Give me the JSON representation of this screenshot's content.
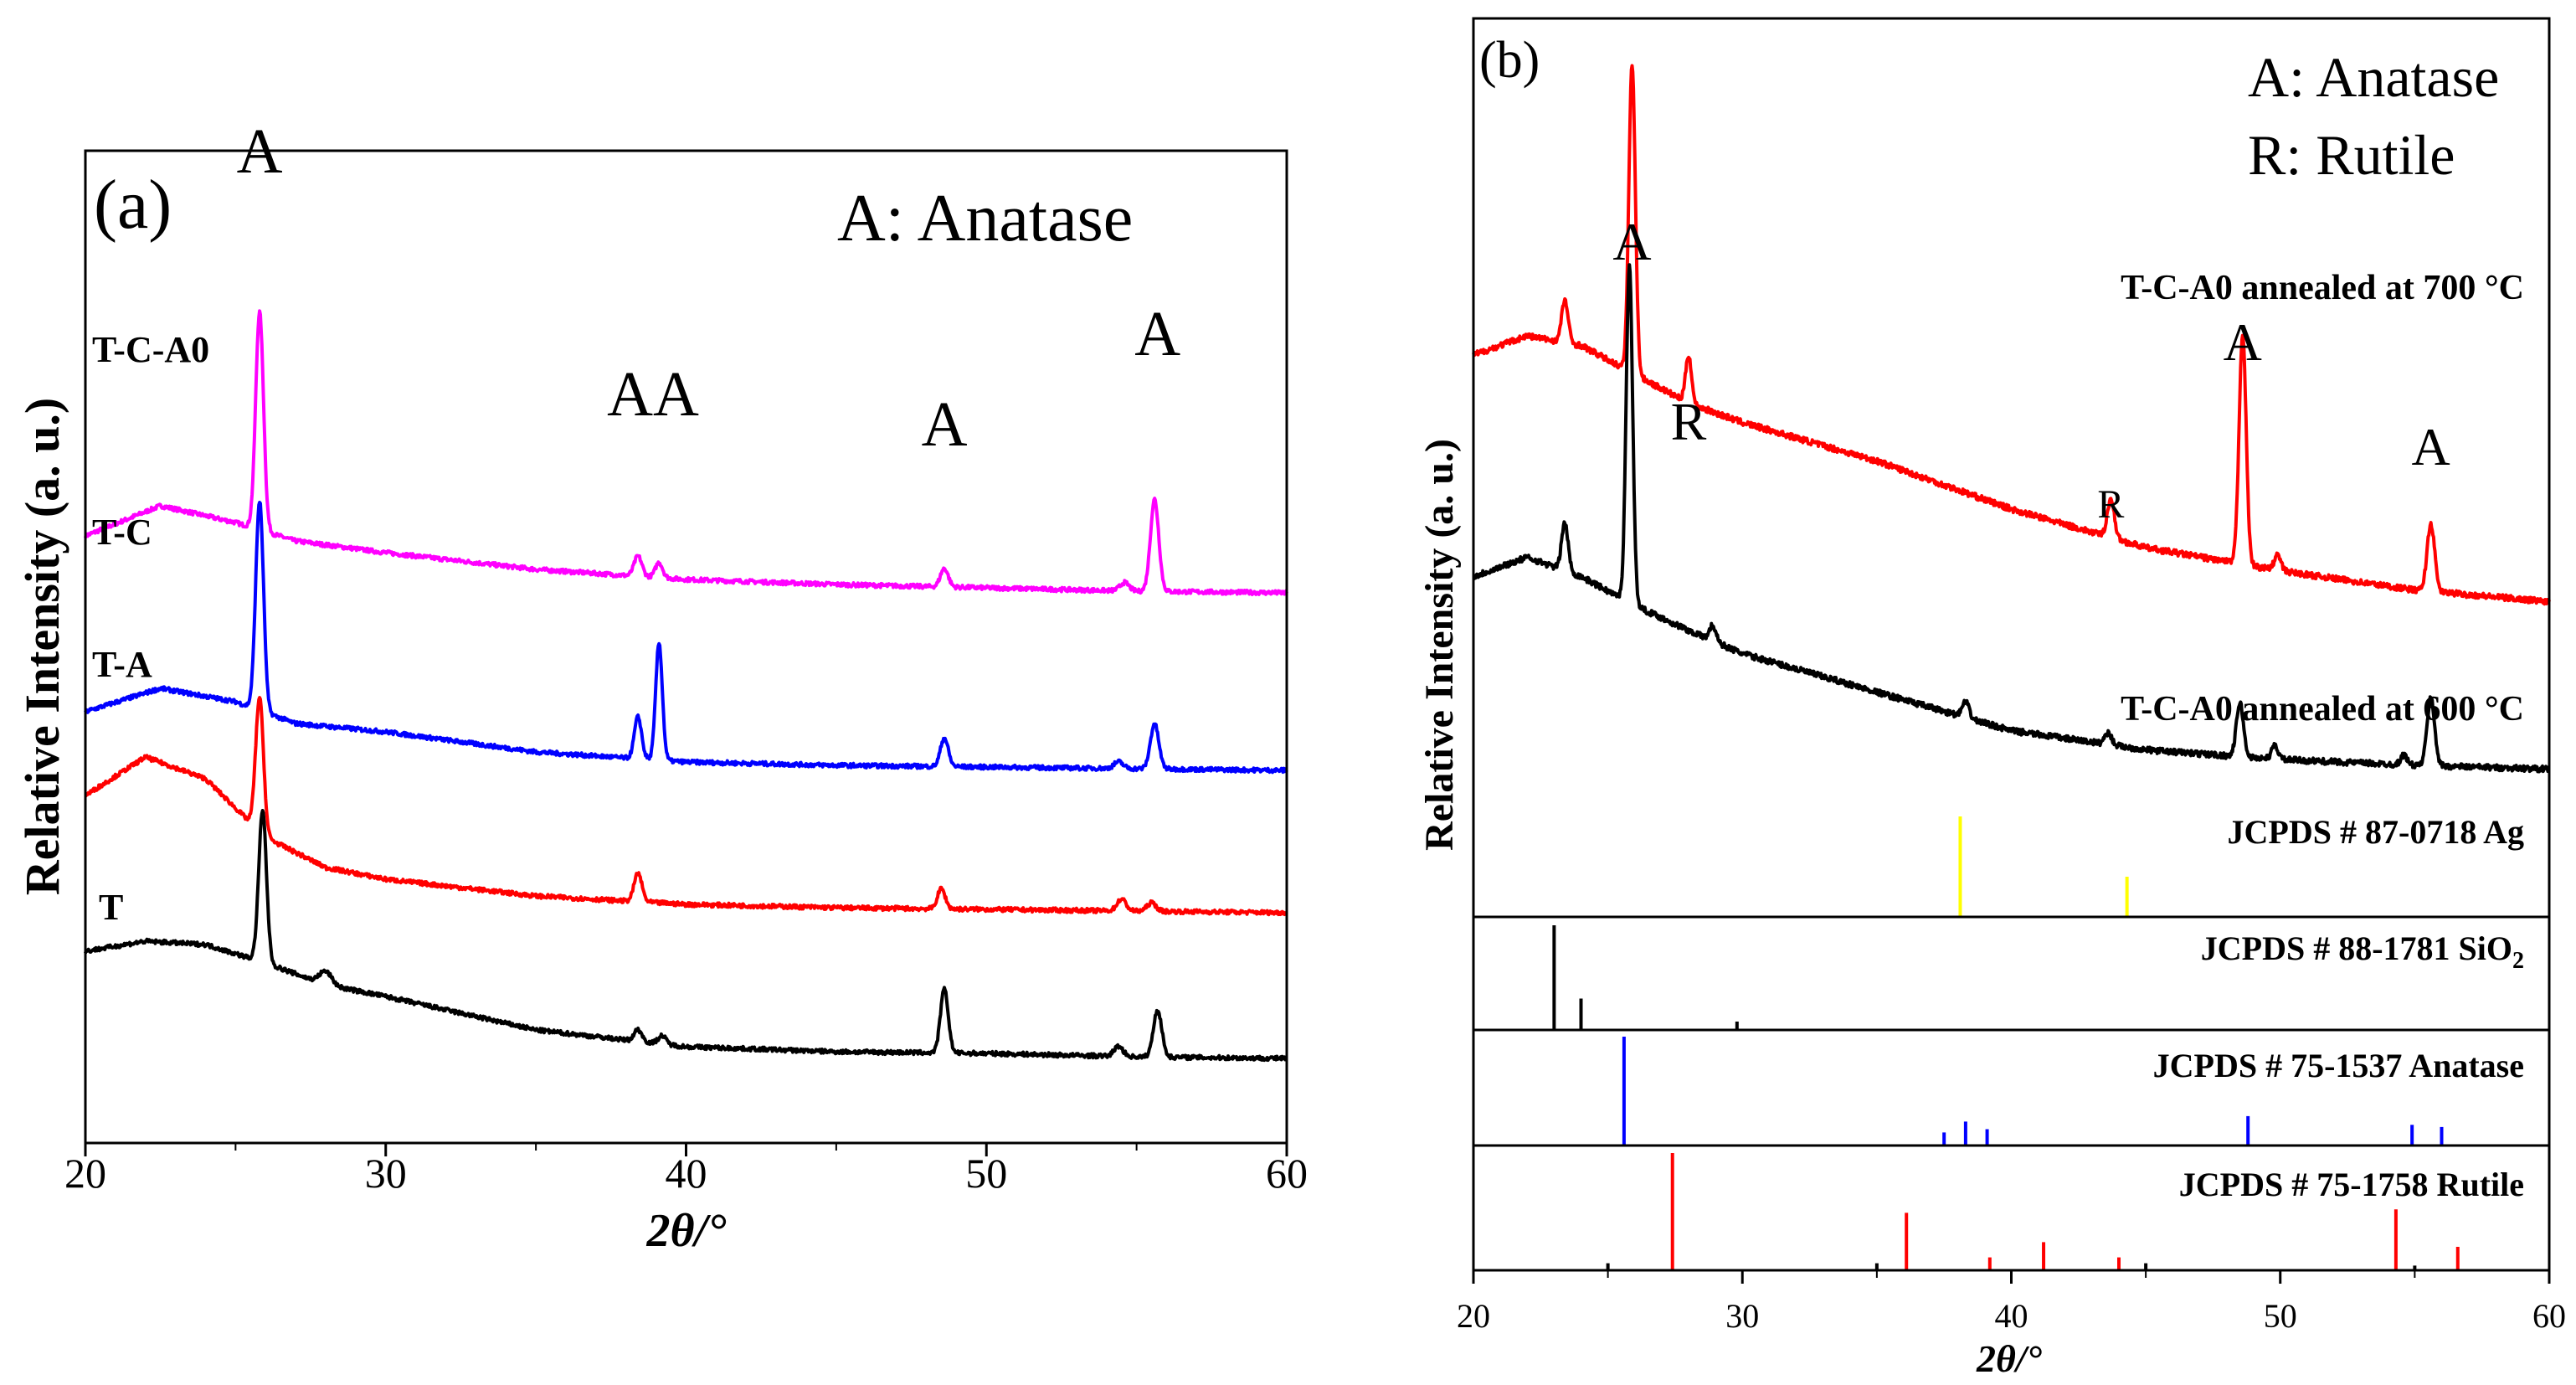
{
  "chart_data": [
    {
      "panel": "a",
      "type": "line",
      "panel_label": "(a)",
      "legend_text": "A: Anatase",
      "xlabel": "2θ/°",
      "ylabel": "Relative Intensity (a. u.)",
      "xlim": [
        20,
        60
      ],
      "xticks": [
        20,
        30,
        40,
        50,
        60
      ],
      "series": [
        {
          "name": "T-C-A0",
          "color": "#ff00ff",
          "base": 3.05,
          "baseline": [
            [
              20,
              0.1
            ],
            [
              22.5,
              0.28
            ],
            [
              25,
              0.18
            ],
            [
              27,
              0.07
            ],
            [
              30,
              0.0
            ],
            [
              35,
              -0.1
            ],
            [
              40,
              -0.16
            ],
            [
              45,
              -0.19
            ],
            [
              50,
              -0.21
            ],
            [
              55,
              -0.23
            ],
            [
              60,
              -0.24
            ]
          ],
          "peaks": [
            [
              25.8,
              1.3,
              0.13
            ],
            [
              38.4,
              0.12,
              0.13
            ],
            [
              39.1,
              0.09,
              0.12
            ],
            [
              48.6,
              0.11,
              0.13
            ],
            [
              55.6,
              0.55,
              0.14
            ],
            [
              54.6,
              0.05,
              0.15
            ]
          ]
        },
        {
          "name": "T-C",
          "color": "#0000ff",
          "base": 1.98,
          "baseline": [
            [
              20,
              0.12
            ],
            [
              22.5,
              0.26
            ],
            [
              25,
              0.18
            ],
            [
              27,
              0.05
            ],
            [
              30,
              0.0
            ],
            [
              35,
              -0.12
            ],
            [
              40,
              -0.18
            ],
            [
              45,
              -0.2
            ],
            [
              50,
              -0.21
            ],
            [
              55,
              -0.22
            ],
            [
              60,
              -0.23
            ]
          ],
          "peaks": [
            [
              25.8,
              1.25,
              0.13
            ],
            [
              38.4,
              0.25,
              0.12
            ],
            [
              39.1,
              0.7,
              0.11
            ],
            [
              48.6,
              0.17,
              0.13
            ],
            [
              55.6,
              0.27,
              0.14
            ],
            [
              54.4,
              0.04,
              0.15
            ]
          ]
        },
        {
          "name": "T-A",
          "color": "#ff0000",
          "base": 1.05,
          "baseline": [
            [
              20,
              0.55
            ],
            [
              22,
              0.78
            ],
            [
              24,
              0.65
            ],
            [
              26,
              0.3
            ],
            [
              28,
              0.12
            ],
            [
              30,
              0.05
            ],
            [
              35,
              -0.05
            ],
            [
              40,
              -0.1
            ],
            [
              45,
              -0.12
            ],
            [
              50,
              -0.13
            ],
            [
              55,
              -0.14
            ],
            [
              60,
              -0.15
            ]
          ],
          "peaks": [
            [
              25.8,
              0.8,
              0.13
            ],
            [
              38.4,
              0.17,
              0.13
            ],
            [
              48.5,
              0.12,
              0.13
            ],
            [
              54.5,
              0.07,
              0.15
            ],
            [
              55.5,
              0.05,
              0.15
            ]
          ]
        },
        {
          "name": "T",
          "color": "#000000",
          "base": 0.05,
          "baseline": [
            [
              20,
              0.62
            ],
            [
              22,
              0.68
            ],
            [
              24,
              0.66
            ],
            [
              26,
              0.55
            ],
            [
              28,
              0.42
            ],
            [
              30,
              0.35
            ],
            [
              35,
              0.15
            ],
            [
              40,
              0.05
            ],
            [
              45,
              0.02
            ],
            [
              50,
              0.01
            ],
            [
              55,
              -0.01
            ],
            [
              60,
              -0.02
            ]
          ],
          "peaks": [
            [
              25.9,
              0.9,
              0.13
            ],
            [
              28.0,
              0.08,
              0.2
            ],
            [
              38.4,
              0.07,
              0.13
            ],
            [
              39.2,
              0.05,
              0.13
            ],
            [
              48.6,
              0.38,
              0.13
            ],
            [
              54.4,
              0.06,
              0.15
            ],
            [
              55.7,
              0.28,
              0.14
            ]
          ]
        }
      ],
      "series_labels": [
        "T-C-A0",
        "T-C",
        "T-A",
        "T"
      ],
      "annotations": [
        {
          "text": "A",
          "x": 25.8,
          "y": 5.32
        },
        {
          "text": "AA",
          "x": 38.9,
          "y": 3.87
        },
        {
          "text": "A",
          "x": 48.6,
          "y": 3.69
        },
        {
          "text": "A",
          "x": 55.7,
          "y": 4.23
        }
      ]
    },
    {
      "panel": "b",
      "type": "line",
      "panel_label": "(b)",
      "legend_lines": [
        "A: Anatase",
        "R: Rutile"
      ],
      "xlabel": "2θ/°",
      "ylabel": "Relative Intensity (a. u.)",
      "xlim": [
        20,
        60
      ],
      "xticks": [
        20,
        30,
        40,
        50,
        60
      ],
      "series": [
        {
          "name": "T-C-A0 annealed at 700 °C",
          "color": "#ff0000",
          "base": 0.9,
          "baseline": [
            [
              20,
              1.3
            ],
            [
              22,
              1.4
            ],
            [
              24,
              1.35
            ],
            [
              26,
              1.2
            ],
            [
              28,
              1.05
            ],
            [
              30,
              0.95
            ],
            [
              35,
              0.75
            ],
            [
              40,
              0.5
            ],
            [
              45,
              0.3
            ],
            [
              50,
              0.18
            ],
            [
              55,
              0.08
            ],
            [
              60,
              0.02
            ]
          ],
          "peaks": [
            [
              23.4,
              0.22,
              0.12
            ],
            [
              25.9,
              1.6,
              0.12
            ],
            [
              28.0,
              0.25,
              0.11
            ],
            [
              43.7,
              0.2,
              0.13
            ],
            [
              48.6,
              1.2,
              0.13
            ],
            [
              49.9,
              0.08,
              0.12
            ],
            [
              55.6,
              0.35,
              0.14
            ]
          ]
        },
        {
          "name": "T-C-A0 annealed at 600 °C",
          "color": "#000000",
          "base": 0.05,
          "baseline": [
            [
              20,
              1.0
            ],
            [
              22,
              1.1
            ],
            [
              24,
              1.0
            ],
            [
              26,
              0.85
            ],
            [
              28,
              0.72
            ],
            [
              30,
              0.6
            ],
            [
              35,
              0.4
            ],
            [
              40,
              0.2
            ],
            [
              45,
              0.1
            ],
            [
              50,
              0.05
            ],
            [
              55,
              0.02
            ],
            [
              60,
              0.0
            ]
          ],
          "peaks": [
            [
              23.4,
              0.25,
              0.12
            ],
            [
              25.8,
              1.75,
              0.12
            ],
            [
              28.9,
              0.08,
              0.12
            ],
            [
              38.3,
              0.08,
              0.13
            ],
            [
              43.6,
              0.06,
              0.13
            ],
            [
              48.5,
              0.28,
              0.13
            ],
            [
              49.8,
              0.07,
              0.12
            ],
            [
              54.6,
              0.05,
              0.12
            ],
            [
              55.6,
              0.35,
              0.14
            ]
          ]
        }
      ],
      "annotations": [
        {
          "text": "A",
          "x": 25.9,
          "y": 1.1
        },
        {
          "text": "R",
          "x": 28.0,
          "y": 1.1
        },
        {
          "text": "R",
          "x": 43.7,
          "y": 1.1
        },
        {
          "text": "A",
          "x": 48.6,
          "y": 1.1
        },
        {
          "text": "A",
          "x": 55.6,
          "y": 1.1
        }
      ],
      "reference_panels": [
        {
          "label_prefix": "JCPDS # 87-0718 Ag",
          "subscript": "",
          "color": "#ffff00",
          "lines": [
            [
              38.1,
              1.0
            ],
            [
              44.3,
              0.4
            ]
          ]
        },
        {
          "label_prefix": "JCPDS # 88-1781 SiO",
          "subscript": "2",
          "color": "#000000",
          "lines": [
            [
              23.0,
              1.0
            ],
            [
              24.0,
              0.3
            ],
            [
              29.8,
              0.08
            ]
          ]
        },
        {
          "label_prefix": "JCPDS # 75-1537 Anatase",
          "subscript": "",
          "color": "#0000ff",
          "lines": [
            [
              25.6,
              1.0
            ],
            [
              37.5,
              0.12
            ],
            [
              38.3,
              0.22
            ],
            [
              39.1,
              0.15
            ],
            [
              48.8,
              0.27
            ],
            [
              54.9,
              0.19
            ],
            [
              56.0,
              0.17
            ]
          ]
        },
        {
          "label_prefix": "JCPDS # 75-1758 Rutile",
          "subscript": "",
          "color": "#ff0000",
          "lines": [
            [
              27.4,
              1.0
            ],
            [
              36.1,
              0.49
            ],
            [
              39.2,
              0.11
            ],
            [
              41.2,
              0.24
            ],
            [
              44.0,
              0.11
            ],
            [
              54.3,
              0.52
            ],
            [
              56.6,
              0.2
            ]
          ]
        },
        {
          "label_prefix": "",
          "subscript": "",
          "color": "#000000",
          "lines": [
            [
              25.0,
              0.06
            ],
            [
              35.0,
              0.06
            ],
            [
              45.0,
              0.06
            ],
            [
              55.0,
              0.04
            ]
          ]
        }
      ]
    }
  ]
}
